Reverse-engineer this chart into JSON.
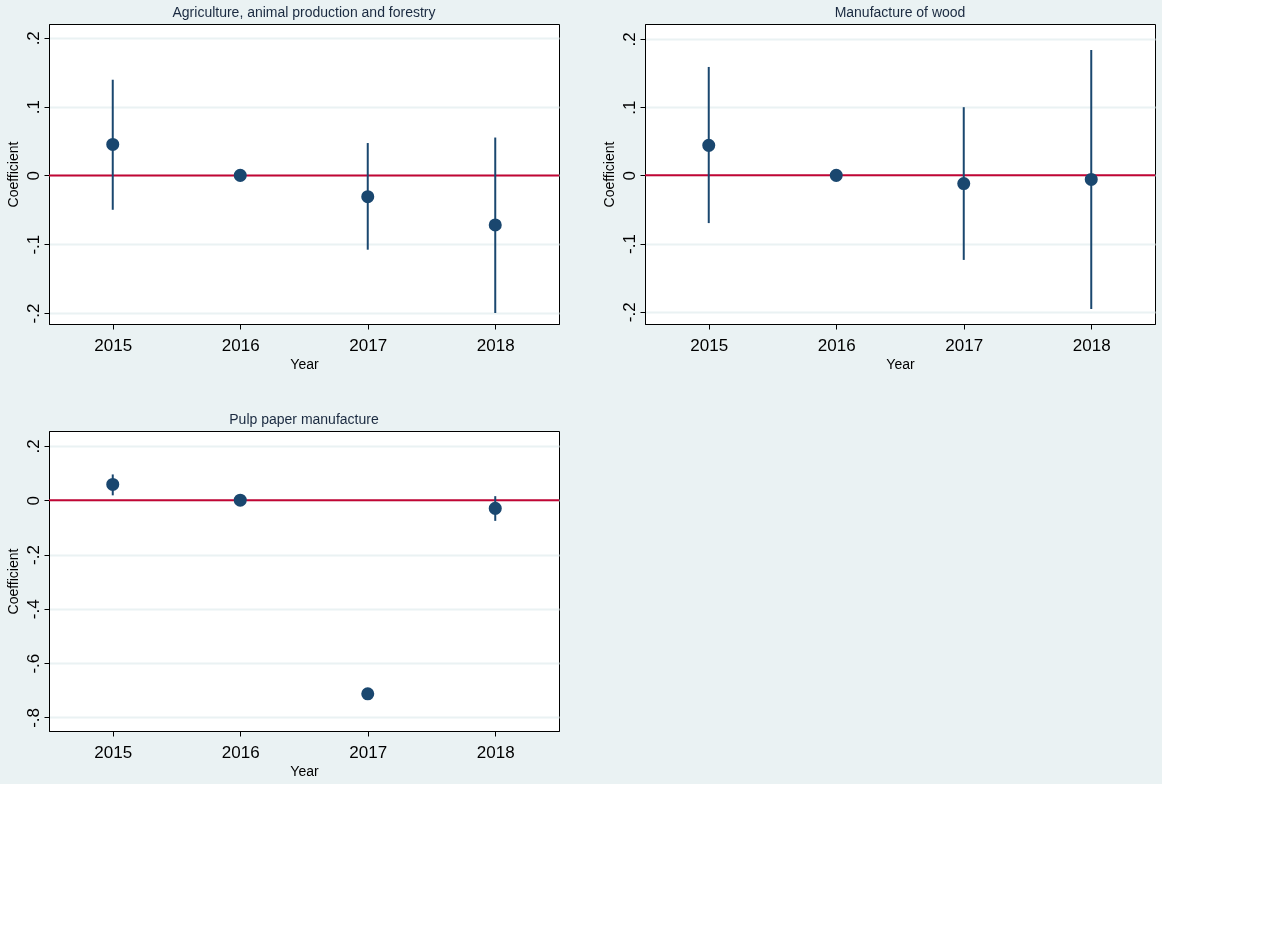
{
  "chart_data": [
    {
      "type": "scatter",
      "title": "Agriculture, animal production and forestry",
      "xlabel": "Year",
      "ylabel": "Coefficient",
      "x": [
        2015,
        2016,
        2017,
        2018
      ],
      "series": [
        {
          "color": "#1a476f",
          "values": [
            0.045,
            0,
            -0.031,
            -0.072
          ],
          "errors": [
            [
              -0.05,
              0.139
            ],
            null,
            [
              -0.108,
              0.047
            ],
            [
              -0.2,
              0.055
            ]
          ]
        }
      ],
      "xlim": [
        2014.5,
        2018.5
      ],
      "xticks": [
        2015,
        2016,
        2017,
        2018
      ],
      "ylim": [
        -0.216,
        0.22
      ],
      "yticks": [
        {
          "value": -0.2,
          "label": "-.2"
        },
        {
          "value": -0.1,
          "label": "-.1"
        },
        0,
        {
          "value": 0.1,
          "label": ".1"
        },
        {
          "value": 0.2,
          "label": ".2"
        }
      ],
      "ref_lines": [
        {
          "axis": "y",
          "value": 0,
          "color": "#c10534"
        }
      ],
      "grid": "y",
      "marker": "circle"
    },
    {
      "type": "scatter",
      "title": "Manufacture of wood",
      "xlabel": "Year",
      "ylabel": "Coefficient",
      "x": [
        2015,
        2016,
        2017,
        2018
      ],
      "series": [
        {
          "color": "#1a476f",
          "values": [
            0.044,
            0,
            -0.012,
            -0.006
          ],
          "errors": [
            [
              -0.07,
              0.159
            ],
            null,
            [
              -0.124,
              0.1
            ],
            [
              -0.196,
              0.184
            ]
          ]
        }
      ],
      "xlim": [
        2014.5,
        2018.5
      ],
      "xticks": [
        2015,
        2016,
        2017,
        2018
      ],
      "ylim": [
        -0.218,
        0.222
      ],
      "yticks": [
        {
          "value": -0.2,
          "label": "-.2"
        },
        {
          "value": -0.1,
          "label": "-.1"
        },
        0,
        {
          "value": 0.1,
          "label": ".1"
        },
        {
          "value": 0.2,
          "label": ".2"
        }
      ],
      "ref_lines": [
        {
          "axis": "y",
          "value": 0,
          "color": "#c10534"
        }
      ],
      "grid": "y",
      "marker": "circle"
    },
    {
      "type": "scatter",
      "title": "Pulp paper manufacture",
      "xlabel": "Year",
      "ylabel": "Coefficient",
      "x": [
        2015,
        2016,
        2017,
        2018
      ],
      "series": [
        {
          "color": "#1a476f",
          "values": [
            0.058,
            0,
            -0.713,
            -0.03
          ],
          "errors": [
            [
              0.018,
              0.095
            ],
            null,
            null,
            [
              -0.076,
              0.015
            ]
          ]
        }
      ],
      "xlim": [
        2014.5,
        2018.5
      ],
      "xticks": [
        2015,
        2016,
        2017,
        2018
      ],
      "ylim": [
        -0.85,
        0.255
      ],
      "yticks": [
        {
          "value": -0.8,
          "label": "-.8"
        },
        {
          "value": -0.6,
          "label": "-.6"
        },
        {
          "value": -0.4,
          "label": "-.4"
        },
        {
          "value": -0.2,
          "label": "-.2"
        },
        0,
        {
          "value": 0.2,
          "label": ".2"
        }
      ],
      "ref_lines": [
        {
          "axis": "y",
          "value": 0,
          "color": "#c10534"
        }
      ],
      "grid": "y",
      "marker": "circle"
    }
  ]
}
